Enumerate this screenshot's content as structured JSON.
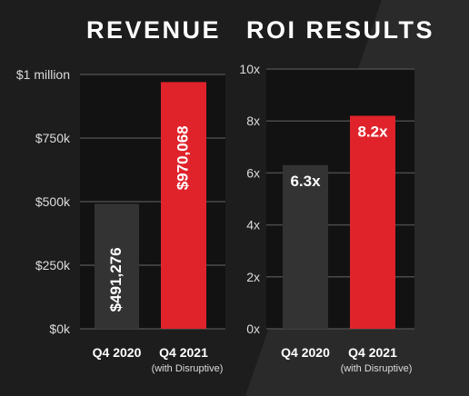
{
  "colors": {
    "background": "#1d1d1d",
    "plot_background": "#121212",
    "gridline": "#4a4a4a",
    "bar_gray": "#333333",
    "bar_red": "#e0232b",
    "text": "#ffffff"
  },
  "chart_data": [
    {
      "type": "bar",
      "title": "REVENUE",
      "categories": [
        "Q4 2020",
        "Q4 2021"
      ],
      "category_subtitles": [
        "",
        "(with Disruptive)"
      ],
      "values": [
        491276,
        970068
      ],
      "data_labels": [
        "$491,276",
        "$970,068"
      ],
      "bar_colors": [
        "#333333",
        "#e0232b"
      ],
      "yticks": [
        0,
        250000,
        500000,
        750000,
        1000000
      ],
      "ytick_labels": [
        "$0k",
        "$250k",
        "$500k",
        "$750k",
        "$1 million"
      ],
      "ylim": [
        0,
        1000000
      ],
      "grid": true,
      "legend": "none"
    },
    {
      "type": "bar",
      "title": "ROI RESULTS",
      "categories": [
        "Q4 2020",
        "Q4 2021"
      ],
      "category_subtitles": [
        "",
        "(with Disruptive)"
      ],
      "values": [
        6.3,
        8.2
      ],
      "data_labels": [
        "6.3x",
        "8.2x"
      ],
      "bar_colors": [
        "#333333",
        "#e0232b"
      ],
      "yticks": [
        0,
        2,
        4,
        6,
        8,
        10
      ],
      "ytick_labels": [
        "0x",
        "2x",
        "4x",
        "6x",
        "8x",
        "10x"
      ],
      "ylim": [
        0,
        10
      ],
      "grid": true,
      "legend": "none"
    }
  ]
}
